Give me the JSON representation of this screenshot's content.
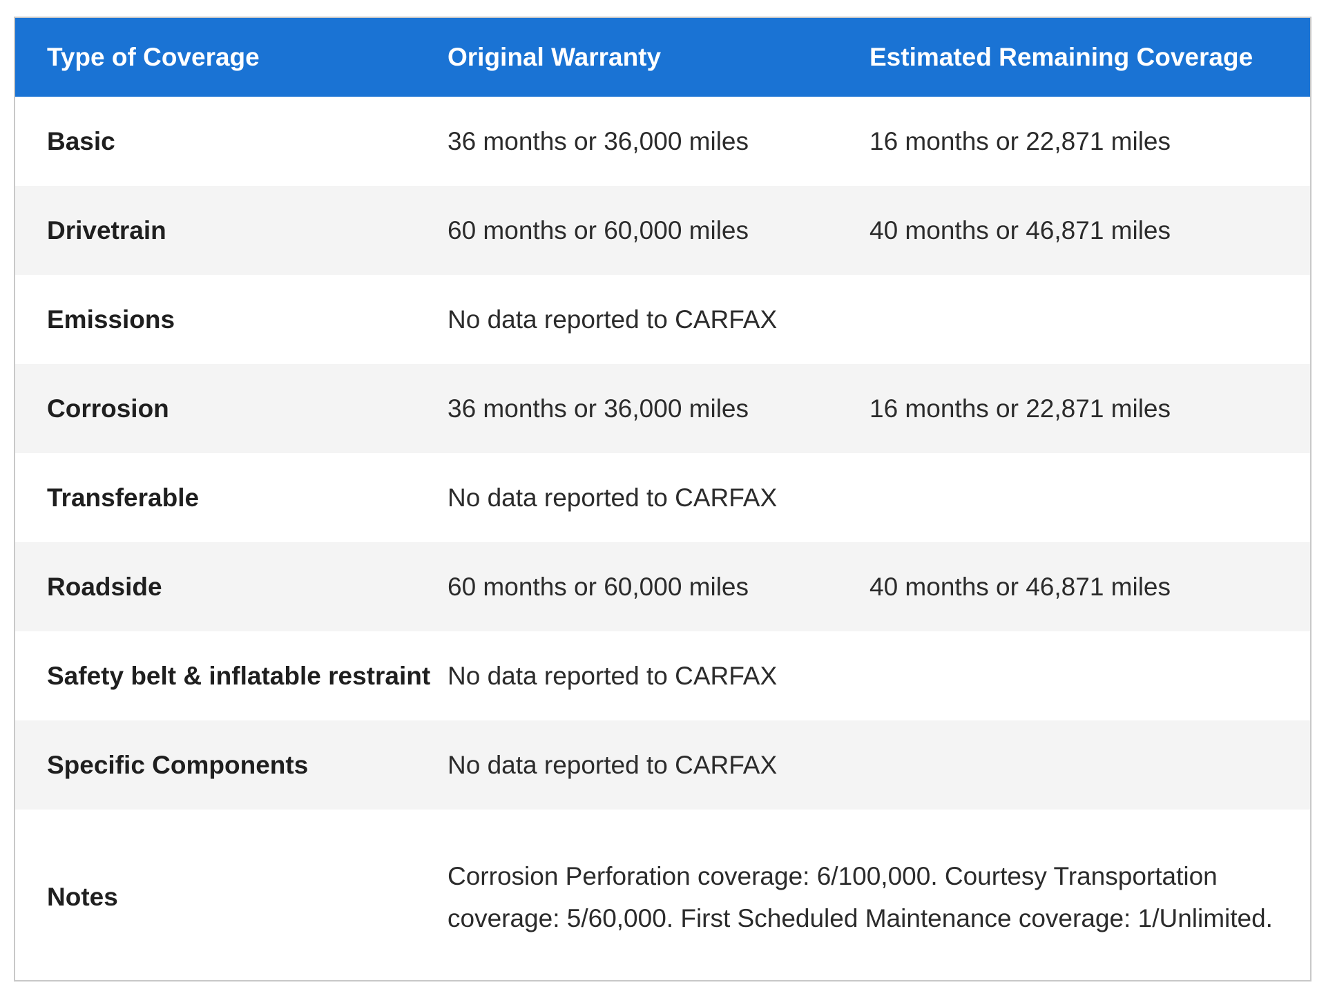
{
  "table": {
    "headers": {
      "type": "Type of Coverage",
      "original": "Original Warranty",
      "remaining": "Estimated Remaining Coverage"
    },
    "rows": [
      {
        "type": "Basic",
        "original": "36 months or 36,000 miles",
        "remaining": "16 months or 22,871 miles"
      },
      {
        "type": "Drivetrain",
        "original": "60 months or 60,000 miles",
        "remaining": "40 months or 46,871 miles"
      },
      {
        "type": "Emissions",
        "original": "No data reported to CARFAX",
        "remaining": ""
      },
      {
        "type": "Corrosion",
        "original": "36 months or 36,000 miles",
        "remaining": "16 months or 22,871 miles"
      },
      {
        "type": "Transferable",
        "original": "No data reported to CARFAX",
        "remaining": ""
      },
      {
        "type": "Roadside",
        "original": "60 months or 60,000 miles",
        "remaining": "40 months or 46,871 miles"
      },
      {
        "type": "Safety belt & inflatable restraint",
        "original": "No data reported to CARFAX",
        "remaining": ""
      },
      {
        "type": "Specific Components",
        "original": "No data reported to CARFAX",
        "remaining": ""
      }
    ],
    "notes": {
      "label": "Notes",
      "text": "Corrosion Perforation coverage: 6/100,000. Courtesy Transportation coverage: 5/60,000. First Scheduled Maintenance coverage: 1/Unlimited."
    }
  },
  "colors": {
    "header_bg": "#1a73d4",
    "header_text": "#ffffff",
    "stripe": "#f4f4f4",
    "border": "#c8c8c8"
  }
}
